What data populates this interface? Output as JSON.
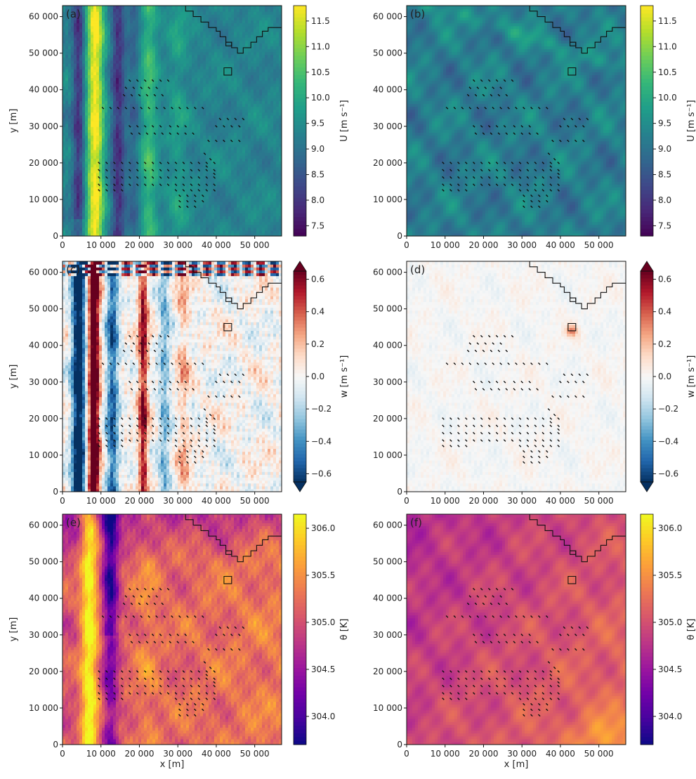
{
  "chart_data": [
    {
      "type": "heatmap",
      "panel_label": "(a)",
      "field": "u",
      "xlabel": "",
      "ylabel": "y [m]",
      "colorbar_label": "U [m s⁻¹]",
      "xlim": [
        0,
        57000
      ],
      "ylim": [
        0,
        63000
      ],
      "xticks": [
        0,
        10000,
        20000,
        30000,
        40000,
        50000
      ],
      "xtick_labels": [
        "0",
        "10 000",
        "20 000",
        "30 000",
        "40 000",
        "50 000"
      ],
      "yticks": [
        0,
        10000,
        20000,
        30000,
        40000,
        50000,
        60000
      ],
      "ytick_labels": [
        "0",
        "10 000",
        "20 000",
        "30 000",
        "40 000",
        "50 000",
        "60 000"
      ],
      "clim": [
        7.3,
        11.8
      ],
      "cbar_ticks": [
        7.5,
        8.0,
        8.5,
        9.0,
        9.5,
        10.0,
        10.5,
        11.0,
        11.5
      ],
      "cbar_tick_labels": [
        "7.5",
        "8.0",
        "8.5",
        "9.0",
        "9.5",
        "10.0",
        "10.5",
        "11.0",
        "11.5"
      ],
      "colormap": "viridis",
      "extend": "neither",
      "pattern": "strong wave-like bands"
    },
    {
      "type": "heatmap",
      "panel_label": "(b)",
      "field": "u",
      "xlabel": "",
      "ylabel": "",
      "colorbar_label": "U [m s⁻¹]",
      "xlim": [
        0,
        57000
      ],
      "ylim": [
        0,
        63000
      ],
      "xticks": [
        0,
        10000,
        20000,
        30000,
        40000,
        50000
      ],
      "xtick_labels": [
        "0",
        "10 000",
        "20 000",
        "30 000",
        "40 000",
        "50 000"
      ],
      "yticks": [
        0,
        10000,
        20000,
        30000,
        40000,
        50000,
        60000
      ],
      "ytick_labels": [
        "0",
        "10 000",
        "20 000",
        "30 000",
        "40 000",
        "50 000",
        "60 000"
      ],
      "clim": [
        7.3,
        11.8
      ],
      "cbar_ticks": [
        7.5,
        8.0,
        8.5,
        9.0,
        9.5,
        10.0,
        10.5,
        11.0,
        11.5
      ],
      "cbar_tick_labels": [
        "7.5",
        "8.0",
        "8.5",
        "9.0",
        "9.5",
        "10.0",
        "10.5",
        "11.0",
        "11.5"
      ],
      "colormap": "viridis",
      "extend": "neither",
      "pattern": "smooth field"
    },
    {
      "type": "heatmap",
      "panel_label": "(c)",
      "field": "w",
      "xlabel": "",
      "ylabel": "y [m]",
      "colorbar_label": "w [m s⁻¹]",
      "xlim": [
        0,
        57000
      ],
      "ylim": [
        0,
        63000
      ],
      "xticks": [
        0,
        10000,
        20000,
        30000,
        40000,
        50000
      ],
      "xtick_labels": [
        "0",
        "10 000",
        "20 000",
        "30 000",
        "40 000",
        "50 000"
      ],
      "yticks": [
        0,
        10000,
        20000,
        30000,
        40000,
        50000,
        60000
      ],
      "ytick_labels": [
        "0",
        "10 000",
        "20 000",
        "30 000",
        "40 000",
        "50 000",
        "60 000"
      ],
      "clim": [
        -0.65,
        0.65
      ],
      "cbar_ticks": [
        -0.6,
        -0.4,
        -0.2,
        0.0,
        0.2,
        0.4,
        0.6
      ],
      "cbar_tick_labels": [
        "−0.6",
        "−0.4",
        "−0.2",
        "0.0",
        "0.2",
        "0.4",
        "0.6"
      ],
      "colormap": "RdBu_r",
      "extend": "both",
      "pattern": "strong wave-like bands"
    },
    {
      "type": "heatmap",
      "panel_label": "(d)",
      "field": "w",
      "xlabel": "",
      "ylabel": "",
      "colorbar_label": "w [m s⁻¹]",
      "xlim": [
        0,
        57000
      ],
      "ylim": [
        0,
        63000
      ],
      "xticks": [
        0,
        10000,
        20000,
        30000,
        40000,
        50000
      ],
      "xtick_labels": [
        "0",
        "10 000",
        "20 000",
        "30 000",
        "40 000",
        "50 000"
      ],
      "yticks": [
        0,
        10000,
        20000,
        30000,
        40000,
        50000,
        60000
      ],
      "ytick_labels": [
        "0",
        "10 000",
        "20 000",
        "30 000",
        "40 000",
        "50 000",
        "60 000"
      ],
      "clim": [
        -0.65,
        0.65
      ],
      "cbar_ticks": [
        -0.6,
        -0.4,
        -0.2,
        0.0,
        0.2,
        0.4,
        0.6
      ],
      "cbar_tick_labels": [
        "−0.6",
        "−0.4",
        "−0.2",
        "0.0",
        "0.2",
        "0.4",
        "0.6"
      ],
      "colormap": "RdBu_r",
      "extend": "both",
      "pattern": "near-zero field"
    },
    {
      "type": "heatmap",
      "panel_label": "(e)",
      "field": "theta",
      "xlabel": "x [m]",
      "ylabel": "y [m]",
      "colorbar_label": "θ [K]",
      "xlim": [
        0,
        57000
      ],
      "ylim": [
        0,
        63000
      ],
      "xticks": [
        0,
        10000,
        20000,
        30000,
        40000,
        50000
      ],
      "xtick_labels": [
        "0",
        "10 000",
        "20 000",
        "30 000",
        "40 000",
        "50 000"
      ],
      "yticks": [
        0,
        10000,
        20000,
        30000,
        40000,
        50000,
        60000
      ],
      "ytick_labels": [
        "0",
        "10 000",
        "20 000",
        "30 000",
        "40 000",
        "50 000",
        "60 000"
      ],
      "clim": [
        303.7,
        306.15
      ],
      "cbar_ticks": [
        304.0,
        304.5,
        305.0,
        305.5,
        306.0
      ],
      "cbar_tick_labels": [
        "304.0",
        "304.5",
        "305.0",
        "305.5",
        "306.0"
      ],
      "colormap": "plasma",
      "extend": "neither",
      "pattern": "strong wave-like bands"
    },
    {
      "type": "heatmap",
      "panel_label": "(f)",
      "field": "theta",
      "xlabel": "x [m]",
      "ylabel": "",
      "colorbar_label": "θ [K]",
      "xlim": [
        0,
        57000
      ],
      "ylim": [
        0,
        63000
      ],
      "xticks": [
        0,
        10000,
        20000,
        30000,
        40000,
        50000
      ],
      "xtick_labels": [
        "0",
        "10 000",
        "20 000",
        "30 000",
        "40 000",
        "50 000"
      ],
      "yticks": [
        0,
        10000,
        20000,
        30000,
        40000,
        50000,
        60000
      ],
      "ytick_labels": [
        "0",
        "10 000",
        "20 000",
        "30 000",
        "40 000",
        "50 000",
        "60 000"
      ],
      "clim": [
        303.7,
        306.15
      ],
      "cbar_ticks": [
        304.0,
        304.5,
        305.0,
        305.5,
        306.0
      ],
      "cbar_tick_labels": [
        "304.0",
        "304.5",
        "305.0",
        "305.5",
        "306.0"
      ],
      "colormap": "plasma",
      "extend": "neither",
      "pattern": "smooth field"
    }
  ],
  "turbine_positions_m": {
    "x": [
      17500,
      19500,
      21500,
      23500,
      25500,
      27500,
      16500,
      18500,
      20500,
      22500,
      24500,
      16000,
      18000,
      20000,
      22000,
      24000,
      26000,
      10500,
      12500,
      14500,
      16500,
      18500,
      20500,
      22500,
      24500,
      26500,
      28500,
      30500,
      32500,
      34500,
      36500,
      17500,
      19500,
      21500,
      23500,
      25500,
      28000,
      30000,
      32000,
      18000,
      20000,
      22000,
      24000,
      26000,
      28000,
      30000,
      32000,
      34000,
      41000,
      43000,
      45000,
      47000,
      40000,
      42000,
      44000,
      46000,
      38000,
      40000,
      42000,
      44000,
      46000,
      9500,
      11500,
      13500,
      15500,
      17500,
      19500,
      21500,
      23500,
      25500,
      27500,
      29500,
      31500,
      33500,
      35500,
      37500,
      39500,
      9500,
      11500,
      13500,
      15500,
      17500,
      19500,
      21500,
      23500,
      25500,
      27500,
      29500,
      31500,
      33500,
      35500,
      37500,
      39500,
      9500,
      11500,
      13500,
      15500,
      17500,
      19500,
      21500,
      23500,
      25500,
      27500,
      29500,
      31500,
      33500,
      35500,
      37500,
      39500,
      9500,
      11500,
      13500,
      15500,
      17500,
      19500,
      21500,
      23500,
      25500,
      27500,
      29500,
      31500,
      33500,
      35500,
      37500,
      39500,
      9500,
      11500,
      13500,
      15500,
      29500,
      31500,
      33500,
      35500,
      37500,
      39500,
      30500,
      32500,
      34500,
      36500,
      30500,
      32500,
      34500,
      36500,
      30500,
      32500,
      34500,
      37000,
      37500,
      38500,
      39500
    ],
    "y": [
      42500,
      42500,
      42500,
      42500,
      42500,
      42500,
      40500,
      40500,
      40500,
      40500,
      40500,
      38500,
      38500,
      38500,
      38500,
      38500,
      38500,
      35000,
      35000,
      35000,
      35000,
      35000,
      35000,
      35000,
      35000,
      35000,
      35000,
      35000,
      35000,
      35000,
      35000,
      30000,
      30000,
      30000,
      30000,
      30000,
      30000,
      30000,
      30000,
      28000,
      28000,
      28000,
      28000,
      28000,
      28000,
      28000,
      28000,
      28000,
      32000,
      32000,
      32000,
      32000,
      30000,
      30000,
      30000,
      30000,
      26000,
      26000,
      26000,
      26000,
      26000,
      20000,
      20000,
      20000,
      20000,
      20000,
      20000,
      20000,
      20000,
      20000,
      20000,
      20000,
      20000,
      20000,
      20000,
      20000,
      20000,
      18000,
      18000,
      18000,
      18000,
      18000,
      18000,
      18000,
      18000,
      18000,
      18000,
      18000,
      18000,
      18000,
      18000,
      18000,
      18000,
      16000,
      16000,
      16000,
      16000,
      16000,
      16000,
      16000,
      16000,
      16000,
      16000,
      16000,
      16000,
      16000,
      16000,
      16000,
      16000,
      14000,
      14000,
      14000,
      14000,
      14000,
      14000,
      14000,
      14000,
      14000,
      14000,
      14000,
      14000,
      14000,
      14000,
      14000,
      14000,
      12500,
      12500,
      12500,
      12500,
      12500,
      12500,
      12500,
      12500,
      12500,
      12500,
      11000,
      11000,
      11000,
      11000,
      9500,
      9500,
      9500,
      9500,
      8000,
      8000,
      8000,
      22500,
      19000,
      21000,
      17000
    ]
  },
  "land_outline_m": {
    "x": [
      32000,
      32000,
      34000,
      34000,
      36000,
      36000,
      38000,
      38000,
      40000,
      40000,
      41000,
      41000,
      42500,
      42500,
      44000,
      44000,
      45500,
      45500,
      47000,
      47000,
      49000,
      49000,
      50500,
      50500,
      52000,
      52000,
      53500,
      53500,
      57000
    ],
    "y": [
      63000,
      61500,
      61500,
      60000,
      60000,
      58500,
      58500,
      57000,
      57000,
      56000,
      56000,
      54500,
      54500,
      53000,
      53000,
      51500,
      51500,
      50000,
      50000,
      51500,
      51500,
      53000,
      53000,
      54500,
      54500,
      56000,
      56000,
      57000,
      57000
    ]
  },
  "small_islands_m": [
    {
      "x": [
        42500,
        44000,
        44000,
        42500,
        42500
      ],
      "y": [
        52000,
        52000,
        53000,
        53000,
        52000
      ]
    },
    {
      "x": [
        42000,
        44000,
        44000,
        42000,
        42000
      ],
      "y": [
        44000,
        44000,
        46000,
        46000,
        44000
      ]
    }
  ]
}
